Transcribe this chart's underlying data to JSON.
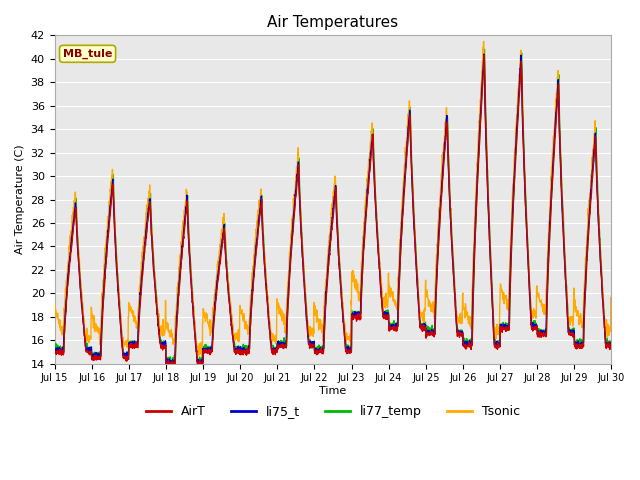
{
  "title": "Air Temperatures",
  "ylabel": "Air Temperature (C)",
  "xlabel": "Time",
  "annotation": "MB_tule",
  "ylim": [
    14,
    42
  ],
  "plot_bg": "#e8e8e8",
  "series": {
    "AirT": {
      "color": "#cc0000",
      "lw": 1.0
    },
    "li75_t": {
      "color": "#0000cc",
      "lw": 1.0
    },
    "li77_temp": {
      "color": "#00bb00",
      "lw": 1.0
    },
    "Tsonic": {
      "color": "#ffaa00",
      "lw": 1.0
    }
  },
  "day_peaks": [
    27.5,
    29.5,
    28.0,
    28.0,
    25.5,
    28.0,
    31.0,
    29.0,
    33.5,
    35.5,
    35.0,
    40.5,
    40.0,
    38.0,
    33.5
  ],
  "day_mins": [
    15.0,
    14.5,
    15.5,
    14.0,
    15.0,
    15.0,
    15.5,
    15.0,
    18.0,
    17.0,
    16.5,
    15.5,
    17.0,
    16.5,
    15.5
  ],
  "tsonic_extra_morning": 2.5,
  "pts_per_day": 144,
  "n_days": 15,
  "xtick_labels": [
    "Jul 15",
    "Jul 16",
    "Jul 17",
    "Jul 18",
    "Jul 19",
    "Jul 20",
    "Jul 21",
    "Jul 22",
    "Jul 23",
    "Jul 24",
    "Jul 25",
    "Jul 26",
    "Jul 27",
    "Jul 28",
    "Jul 29",
    "Jul 30"
  ],
  "ytick_labels": [
    14,
    16,
    18,
    20,
    22,
    24,
    26,
    28,
    30,
    32,
    34,
    36,
    38,
    40,
    42
  ]
}
